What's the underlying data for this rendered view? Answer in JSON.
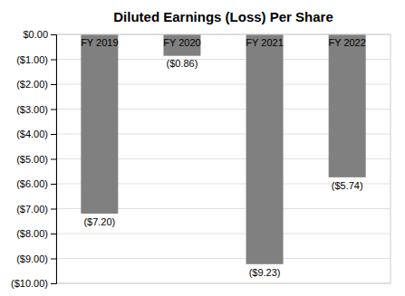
{
  "chart_data": {
    "type": "bar",
    "title": "Diluted Earnings (Loss) Per Share",
    "categories": [
      "FY 2019",
      "FY 2020",
      "FY 2021",
      "FY 2022"
    ],
    "values": [
      -7.2,
      -0.86,
      -9.23,
      -5.74
    ],
    "value_labels": [
      "($7.20)",
      "($0.86)",
      "($9.23)",
      "($5.74)"
    ],
    "color": "#808080",
    "ylim": [
      -10.0,
      0.0
    ],
    "yticks": [
      {
        "value": 0.0,
        "label": "$0.00"
      },
      {
        "value": -1.0,
        "label": "($1.00)"
      },
      {
        "value": -2.0,
        "label": "($2.00)"
      },
      {
        "value": -3.0,
        "label": "($3.00)"
      },
      {
        "value": -4.0,
        "label": "($4.00)"
      },
      {
        "value": -5.0,
        "label": "($5.00)"
      },
      {
        "value": -6.0,
        "label": "($6.00)"
      },
      {
        "value": -7.0,
        "label": "($7.00)"
      },
      {
        "value": -8.0,
        "label": "($8.00)"
      },
      {
        "value": -9.0,
        "label": "($9.00)"
      },
      {
        "value": -10.0,
        "label": "($10.00)"
      }
    ],
    "grid": true,
    "data_labels": true
  }
}
